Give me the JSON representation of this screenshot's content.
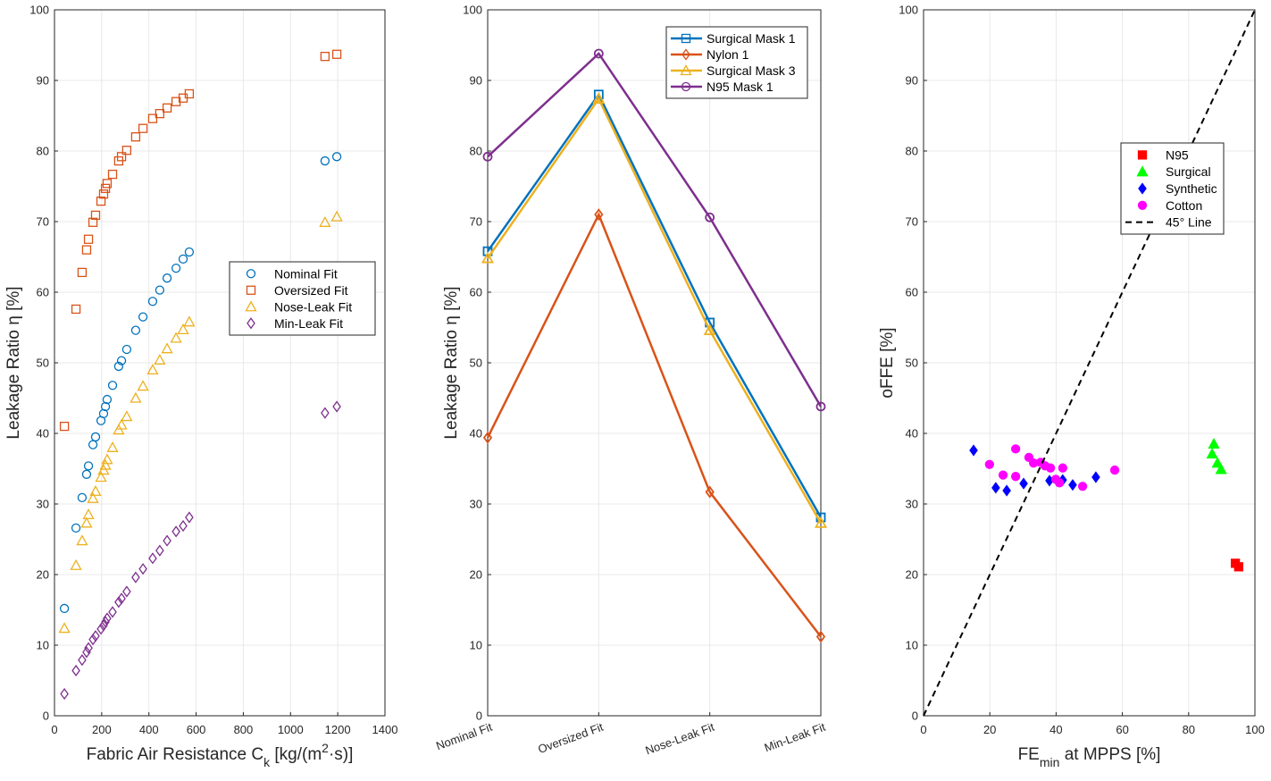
{
  "chart_data": [
    {
      "type": "scatter",
      "xlabel": [
        {
          "text": "Fabric Air Resistance C"
        },
        {
          "text": "k",
          "shift": "sub"
        },
        {
          "text": " [kg/(m"
        },
        {
          "text": "2",
          "shift": "super"
        },
        {
          "text": "·s)]"
        }
      ],
      "ylabel": "Leakage Ratio  η [%]",
      "x": [
        42,
        91,
        117,
        136,
        144,
        163,
        174,
        197,
        208,
        216,
        223,
        246,
        272,
        284,
        306,
        344,
        375,
        416,
        446,
        477,
        515,
        545,
        571,
        1146,
        1196
      ],
      "xlim": [
        0,
        1400
      ],
      "xticks": [
        0,
        200,
        400,
        600,
        800,
        1000,
        1200,
        1400
      ],
      "ylim": [
        0,
        100
      ],
      "yticks": [
        0,
        10,
        20,
        30,
        40,
        50,
        60,
        70,
        80,
        90,
        100
      ],
      "grid": true,
      "legend": "east",
      "series": [
        {
          "name": "Nominal Fit",
          "color": "#0072BD",
          "marker": "circle",
          "values": [
            15.2,
            26.6,
            30.9,
            34.2,
            35.4,
            38.4,
            39.5,
            41.8,
            42.8,
            43.8,
            44.8,
            46.8,
            49.5,
            50.3,
            51.9,
            54.6,
            56.5,
            58.7,
            60.3,
            62.0,
            63.4,
            64.7,
            65.7,
            78.6,
            79.2
          ]
        },
        {
          "name": "Oversized Fit",
          "color": "#D95319",
          "marker": "square",
          "values": [
            41.0,
            57.6,
            62.8,
            66.0,
            67.5,
            69.9,
            70.9,
            72.9,
            73.9,
            74.7,
            75.4,
            76.7,
            78.6,
            79.2,
            80.1,
            82.0,
            83.2,
            84.6,
            85.3,
            86.1,
            87.0,
            87.5,
            88.1,
            93.4,
            93.7
          ]
        },
        {
          "name": "Nose-Leak Fit",
          "color": "#EDB120",
          "marker": "triangle",
          "values": [
            12.4,
            21.3,
            24.8,
            27.3,
            28.5,
            30.8,
            31.8,
            33.8,
            34.8,
            35.5,
            36.3,
            38.0,
            40.5,
            41.2,
            42.4,
            45.0,
            46.7,
            49.0,
            50.4,
            52.0,
            53.5,
            54.7,
            55.8,
            69.9,
            70.7
          ]
        },
        {
          "name": "Min-Leak Fit",
          "color": "#7E2F8E",
          "marker": "diamond",
          "values": [
            3.1,
            6.4,
            7.9,
            9.0,
            9.6,
            10.8,
            11.3,
            12.3,
            12.8,
            13.3,
            13.8,
            14.7,
            16.1,
            16.6,
            17.6,
            19.6,
            20.8,
            22.3,
            23.4,
            24.8,
            26.1,
            26.9,
            28.1,
            42.9,
            43.8
          ]
        }
      ]
    },
    {
      "type": "line",
      "ylabel": "Leakage Ratio  η [%]",
      "categories": [
        "Nominal Fit",
        "Oversized Fit",
        "Nose-Leak Fit",
        "Min-Leak Fit"
      ],
      "ylim": [
        0,
        100
      ],
      "yticks": [
        0,
        10,
        20,
        30,
        40,
        50,
        60,
        70,
        80,
        90,
        100
      ],
      "grid": true,
      "legend": "northeast",
      "series": [
        {
          "name": "Surgical Mask 1",
          "color": "#0072BD",
          "marker": "square",
          "values": [
            65.8,
            88.0,
            55.7,
            28.1
          ]
        },
        {
          "name": "Nylon 1",
          "color": "#D95319",
          "marker": "diamond",
          "values": [
            39.4,
            71.0,
            31.7,
            11.2
          ]
        },
        {
          "name": "Surgical Mask 3",
          "color": "#EDB120",
          "marker": "triangle",
          "values": [
            64.8,
            87.4,
            54.6,
            27.3
          ]
        },
        {
          "name": "N95 Mask 1",
          "color": "#7E2F8E",
          "marker": "circle",
          "values": [
            79.2,
            93.8,
            70.6,
            43.8
          ]
        }
      ]
    },
    {
      "type": "scatter",
      "xlabel": [
        {
          "text": "FE"
        },
        {
          "text": "min",
          "shift": "sub"
        },
        {
          "text": " at MPPS [%]"
        }
      ],
      "ylabel": "oFFE [%]",
      "xlim": [
        0,
        100
      ],
      "xticks": [
        0,
        20,
        40,
        60,
        80,
        100
      ],
      "ylim": [
        0,
        100
      ],
      "yticks": [
        0,
        10,
        20,
        30,
        40,
        50,
        60,
        70,
        80,
        90,
        100
      ],
      "grid": true,
      "legend": "east",
      "series": [
        {
          "name": "N95",
          "color": "#FF0000",
          "marker": "square",
          "filled": true,
          "x": [
            94.1,
            95.1
          ],
          "values": [
            21.6,
            21.1
          ]
        },
        {
          "name": "Surgical",
          "color": "#00FF00",
          "marker": "triangle",
          "filled": true,
          "x": [
            87.6,
            87.1,
            88.7,
            89.8
          ],
          "values": [
            38.5,
            37.1,
            35.8,
            34.9
          ]
        },
        {
          "name": "Synthetic",
          "color": "#0000FF",
          "marker": "diamond",
          "filled": true,
          "x": [
            15.1,
            21.8,
            25.1,
            30.2,
            38.0,
            42.0,
            45.0,
            52.0
          ],
          "values": [
            37.6,
            32.3,
            31.9,
            32.9,
            33.3,
            33.4,
            32.7,
            33.8
          ]
        },
        {
          "name": "Cotton",
          "color": "#FF00FF",
          "marker": "circle",
          "filled": true,
          "x": [
            19.9,
            24.0,
            27.8,
            27.8,
            31.8,
            33.2,
            35.3,
            36.7,
            38.3,
            39.9,
            41.0,
            42.0,
            48.0,
            57.7
          ],
          "values": [
            35.6,
            34.1,
            37.8,
            33.9,
            36.6,
            35.8,
            35.9,
            35.4,
            35.1,
            33.5,
            33.0,
            35.1,
            32.5,
            34.8
          ]
        },
        {
          "name": "45° Line",
          "color": "#000000",
          "style": "dashed",
          "x": [
            0,
            100
          ],
          "values": [
            0,
            100
          ]
        }
      ]
    }
  ]
}
